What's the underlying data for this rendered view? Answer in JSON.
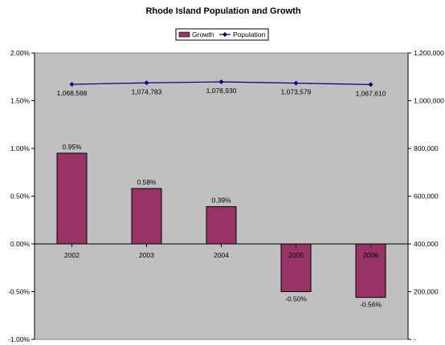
{
  "chart_data": {
    "type": "bar",
    "title": "Rhode Island Population and Growth",
    "categories": [
      "2002",
      "2003",
      "2004",
      "2005",
      "2006"
    ],
    "series": [
      {
        "name": "Growth",
        "type": "bar",
        "axis": "left",
        "values": [
          0.95,
          0.58,
          0.39,
          -0.5,
          -0.56
        ],
        "labels": [
          "0.95%",
          "0.58%",
          "0.39%",
          "-0.50%",
          "-0.56%"
        ],
        "color": "#993366"
      },
      {
        "name": "Population",
        "type": "line",
        "axis": "right",
        "values": [
          1068568,
          1074783,
          1078930,
          1073579,
          1067610
        ],
        "labels": [
          "1,068,568",
          "1,074,783",
          "1,078,930",
          "1,073,579",
          "1,067,610"
        ],
        "color": "#000080"
      }
    ],
    "y_left": {
      "ylim": [
        -1.0,
        2.0
      ],
      "ticks": [
        2.0,
        1.5,
        1.0,
        0.5,
        0.0,
        -0.5,
        -1.0
      ],
      "tick_labels": [
        "2.00%",
        "1.50%",
        "1.00%",
        "0.50%",
        "0.00%",
        "-0.50%",
        "-1.00%"
      ]
    },
    "y_right": {
      "ylim": [
        0,
        1200000
      ],
      "ticks": [
        1200000,
        1000000,
        800000,
        600000,
        400000,
        200000,
        0
      ],
      "tick_labels": [
        "1,200,000",
        "1,000,000",
        "800,000",
        "600,000",
        "400,000",
        "200,000",
        "-"
      ]
    },
    "legend_position": "top-center",
    "grid": false,
    "plot_background": "#c0c0c0"
  }
}
